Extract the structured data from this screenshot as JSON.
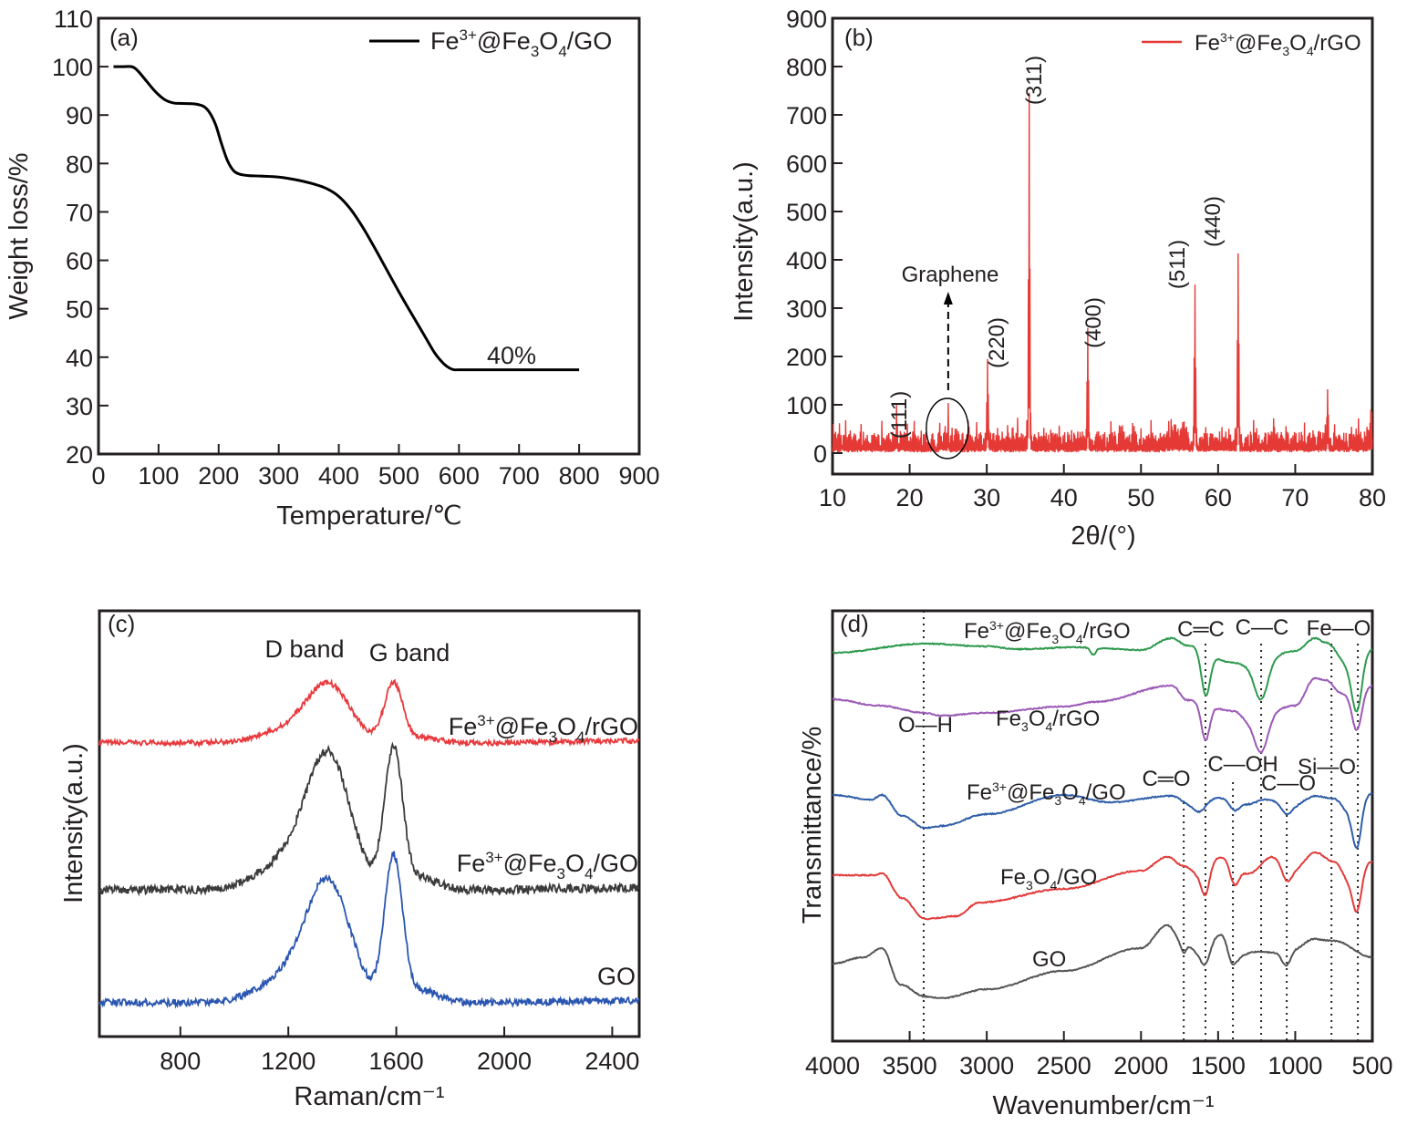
{
  "figure": {
    "panels": [
      "(a)",
      "(b)",
      "(c)",
      "(d)"
    ]
  },
  "chart_data": [
    {
      "id": "a",
      "type": "line",
      "panel_label": "(a)",
      "xlabel": "Temperature/℃",
      "ylabel": "Weight loss/%",
      "xlim": [
        0,
        900
      ],
      "ylim": [
        20,
        110
      ],
      "xticks": [
        0,
        100,
        200,
        300,
        400,
        500,
        600,
        700,
        800,
        900
      ],
      "yticks": [
        20,
        30,
        40,
        50,
        60,
        70,
        80,
        90,
        100,
        110
      ],
      "legend": {
        "position": "top-right",
        "entries": [
          {
            "base": "Fe",
            "sup1": "3+",
            "mid": "@Fe",
            "sub1": "3",
            "mid2": "O",
            "sub2": "4",
            "tail": "/GO",
            "color": "#000000"
          }
        ]
      },
      "annotations": [
        {
          "text": "40%",
          "x": 660,
          "y": 40
        }
      ],
      "series": [
        {
          "name": "Fe3+@Fe3O4/GO",
          "color": "#000000",
          "x": [
            25,
            40,
            55,
            65,
            80,
            95,
            110,
            125,
            140,
            160,
            175,
            185,
            195,
            205,
            215,
            225,
            235,
            250,
            270,
            300,
            330,
            360,
            380,
            400,
            420,
            440,
            460,
            480,
            500,
            520,
            540,
            560,
            575,
            585,
            592,
            600,
            650,
            700,
            750,
            800
          ],
          "y": [
            100,
            100,
            100,
            99.2,
            97,
            94.8,
            93.2,
            92.5,
            92.4,
            92.3,
            91.8,
            90.5,
            88,
            84,
            80.5,
            78.5,
            77.8,
            77.5,
            77.4,
            77.2,
            76.6,
            75.7,
            74.8,
            73.2,
            70.5,
            66.8,
            62.5,
            58,
            53.5,
            49.2,
            45,
            40.8,
            38.6,
            37.7,
            37.4,
            37.4,
            37.4,
            37.4,
            37.4,
            37.4
          ]
        }
      ]
    },
    {
      "id": "b",
      "type": "line",
      "panel_label": "(b)",
      "xlabel": "2θ/(°)",
      "ylabel": "Intensity(a.u.)",
      "xlim": [
        10,
        80
      ],
      "ylim": [
        -43,
        900
      ],
      "xticks": [
        10,
        20,
        30,
        40,
        50,
        60,
        70,
        80
      ],
      "yticks": [
        0,
        100,
        200,
        300,
        400,
        500,
        600,
        700,
        800,
        900
      ],
      "legend": {
        "position": "top-right",
        "entries": [
          {
            "base": "Fe",
            "sup1": "3+",
            "mid": "@Fe",
            "sub1": "3",
            "mid2": "O",
            "sub2": "4",
            "tail": "/rGO",
            "color": "#e53935"
          }
        ]
      },
      "baseline_noise_max": 60,
      "peaks": [
        {
          "label": "(111)",
          "x": 18.3,
          "y": 80
        },
        {
          "label": "Graphene",
          "x": 25.0,
          "y": 120
        },
        {
          "label": "(220)",
          "x": 30.1,
          "y": 200
        },
        {
          "label": "(311)",
          "x": 35.5,
          "y": 725
        },
        {
          "label": "(400)",
          "x": 43.1,
          "y": 255
        },
        {
          "label": "(511)",
          "x": 57.0,
          "y": 340
        },
        {
          "label": "(440)",
          "x": 62.6,
          "y": 422
        },
        {
          "label": "",
          "x": 74.2,
          "y": 128
        }
      ],
      "annotations": [
        {
          "text": "Graphene",
          "x": 25.0,
          "y": 375,
          "arrow": "dashed-up",
          "ellipse_center": [
            25,
            40
          ]
        }
      ],
      "series": [
        {
          "name": "Fe3+@Fe3O4/rGO",
          "color": "#e53935"
        }
      ]
    },
    {
      "id": "c",
      "type": "line",
      "panel_label": "(c)",
      "xlabel": "Raman/cm⁻¹",
      "ylabel": "Intensity(a.u.)",
      "xlim": [
        500,
        2500
      ],
      "ylim": [
        0,
        1
      ],
      "xticks": [
        800,
        1200,
        1600,
        2000,
        2400
      ],
      "annotations": [
        {
          "text": "D band",
          "x": 1350
        },
        {
          "text": "G band",
          "x": 1590
        }
      ],
      "series": [
        {
          "name": "Fe3+@Fe3O4/rGO",
          "color": "#e8393d",
          "label_tail": "/rGO",
          "offset": 0.69,
          "D": {
            "x": 1350,
            "h": 0.13
          },
          "G": {
            "x": 1590,
            "h": 0.14
          },
          "noise": 0.006
        },
        {
          "name": "Fe3+@Fe3O4/GO",
          "color": "#3b3b3b",
          "label_tail": "/GO",
          "offset": 0.345,
          "D": {
            "x": 1350,
            "h": 0.3
          },
          "G": {
            "x": 1590,
            "h": 0.33
          },
          "noise": 0.01
        },
        {
          "name": "GO",
          "color": "#2b56b0",
          "label_tail": "",
          "offset": 0.08,
          "D": {
            "x": 1350,
            "h": 0.27
          },
          "G": {
            "x": 1590,
            "h": 0.34
          },
          "noise": 0.008
        }
      ]
    },
    {
      "id": "d",
      "type": "line",
      "panel_label": "(d)",
      "xlabel": "Wavenumber/cm⁻¹",
      "ylabel": "Transmittance/%",
      "xlim": [
        4000,
        500
      ],
      "ylim": [
        0,
        1
      ],
      "xticks": [
        4000,
        3500,
        3000,
        2500,
        2000,
        1500,
        1000,
        500
      ],
      "reference_lines": [
        3409,
        1723,
        1582,
        1404,
        1221,
        1055,
        765,
        594
      ],
      "bond_labels": [
        {
          "text": "O—H",
          "x": 3290,
          "row": "rGO"
        },
        {
          "text": "C═C",
          "x": 1580,
          "row": "top"
        },
        {
          "text": "C—C",
          "x": 1220,
          "row": "top"
        },
        {
          "text": "Fe—O",
          "x": 700,
          "row": "top"
        },
        {
          "text": "C═O",
          "x": 1785,
          "row": "mid"
        },
        {
          "text": "C—OH",
          "x": 1390,
          "row": "mid"
        },
        {
          "text": "C—O",
          "x": 1065,
          "row": "mid2"
        },
        {
          "text": "Si—O",
          "x": 640,
          "row": "mid"
        }
      ],
      "series": [
        {
          "name": "Fe3+@Fe3O4/rGO",
          "color": "#2e9a4e"
        },
        {
          "name": "Fe3O4/rGO",
          "color": "#9b59b6"
        },
        {
          "name": "Fe3+@Fe3O4/GO",
          "color": "#2f5ea8"
        },
        {
          "name": "Fe3O4/GO",
          "color": "#e23b3b"
        },
        {
          "name": "GO",
          "color": "#555555"
        }
      ]
    }
  ]
}
